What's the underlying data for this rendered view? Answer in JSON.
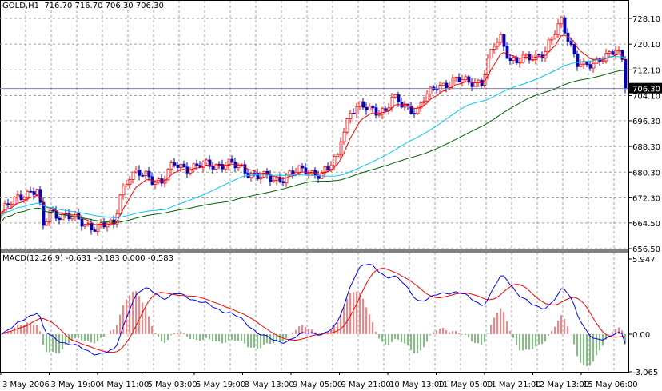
{
  "header": {
    "symbol": "GOLD,H1",
    "ohlc": "716.70 716.70 706.30 706.30"
  },
  "macd_header": {
    "label": "MACD(12,26,9)",
    "values": "-0.631 -0.183 0.000 -0.583"
  },
  "chart_data": [
    {
      "type": "candlestick",
      "title": "GOLD,H1",
      "price_axis_ticks": [
        "728.10",
        "720.10",
        "712.10",
        "704.10",
        "696.30",
        "688.30",
        "680.30",
        "672.30",
        "664.50",
        "656.50"
      ],
      "ylim": [
        656.5,
        728.1
      ],
      "current_price": "706.30",
      "x_tick_labels": [
        "3 May 2006",
        "3 May 19:00",
        "4 May 11:00",
        "5 May 03:00",
        "5 May 19:00",
        "8 May 13:00",
        "9 May 05:00",
        "9 May 21:00",
        "10 May 13:00",
        "11 May 05:00",
        "11 May 21:00",
        "12 May 13:00",
        "15 May 06:00"
      ],
      "bar_count": 196,
      "close_keypoints": [
        [
          0,
          667.9
        ],
        [
          7,
          674
        ],
        [
          11,
          674.6
        ],
        [
          13,
          663
        ],
        [
          15,
          668
        ],
        [
          20,
          666.7
        ],
        [
          25,
          664.7
        ],
        [
          30,
          663
        ],
        [
          35,
          664
        ],
        [
          37,
          674
        ],
        [
          40,
          679
        ],
        [
          45,
          679.6
        ],
        [
          50,
          677
        ],
        [
          54,
          682.8
        ],
        [
          60,
          681.6
        ],
        [
          65,
          682.8
        ],
        [
          70,
          682.8
        ],
        [
          75,
          681.6
        ],
        [
          80,
          679
        ],
        [
          85,
          677.9
        ],
        [
          90,
          679.6
        ],
        [
          95,
          681
        ],
        [
          100,
          679.6
        ],
        [
          102,
          681
        ],
        [
          105,
          685.3
        ],
        [
          106,
          691.5
        ],
        [
          109,
          699
        ],
        [
          112,
          700.2
        ],
        [
          116,
          700.2
        ],
        [
          120,
          699
        ],
        [
          122,
          702.7
        ],
        [
          126,
          701.5
        ],
        [
          130,
          699
        ],
        [
          132,
          702.7
        ],
        [
          136,
          707.7
        ],
        [
          140,
          707.7
        ],
        [
          144,
          709
        ],
        [
          147,
          709
        ],
        [
          150,
          707.7
        ],
        [
          152,
          714
        ],
        [
          154,
          720.1
        ],
        [
          156,
          722.6
        ],
        [
          159,
          715.2
        ],
        [
          161,
          714
        ],
        [
          165,
          716.4
        ],
        [
          170,
          717.6
        ],
        [
          172,
          721.4
        ],
        [
          175,
          727.6
        ],
        [
          177,
          722.6
        ],
        [
          180,
          714
        ],
        [
          182,
          712.7
        ],
        [
          185,
          714
        ],
        [
          187,
          716.4
        ],
        [
          190,
          716.8
        ],
        [
          192,
          717.6
        ],
        [
          194,
          715
        ],
        [
          195,
          706.3
        ]
      ],
      "moving_averages": [
        {
          "name": "fast",
          "color": "#ff0000"
        },
        {
          "name": "medium",
          "color": "#00c8ff"
        },
        {
          "name": "slow",
          "color": "#006400"
        }
      ]
    },
    {
      "type": "macd",
      "params": "12,26,9",
      "axis_ticks": [
        "5.947",
        "0.00",
        "-3.065"
      ],
      "ylim": [
        -3.065,
        5.947
      ],
      "series": [
        {
          "name": "MACD",
          "color": "#0000ff"
        },
        {
          "name": "Signal",
          "color": "#ff0000"
        },
        {
          "name": "Histogram",
          "pos_color": "#ff0000",
          "neg_color": "#008000"
        }
      ]
    }
  ]
}
